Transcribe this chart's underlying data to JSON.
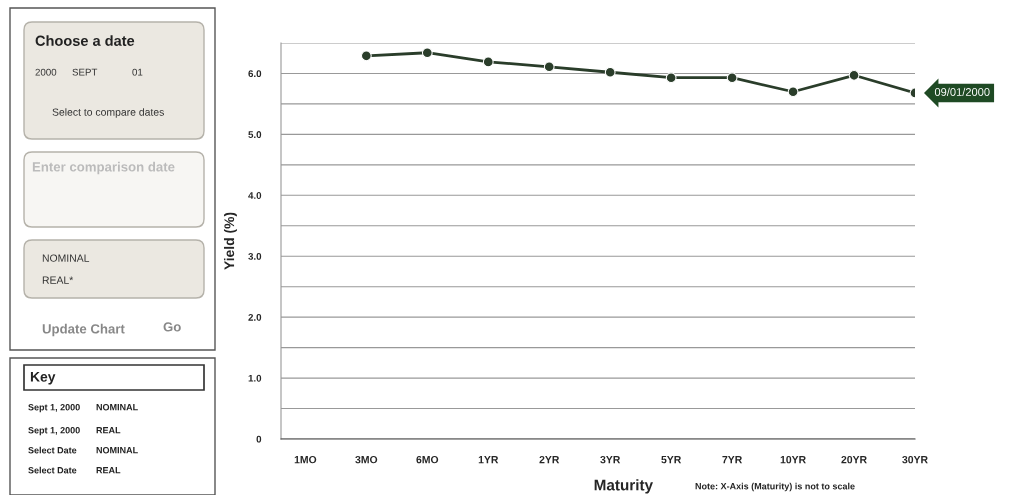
{
  "chart_data": [
    {
      "type": "other",
      "annotations": [
        "Choose a date",
        "2000",
        "SEPT",
        "01",
        "Select to compare dates",
        "Enter comparison date",
        "NOMINAL",
        "REAL*",
        "Update Chart",
        "Go",
        "Key",
        "Sept 1, 2000",
        "NOMINAL",
        "Sept 1, 2000",
        "REAL",
        "Select Date",
        "NOMINAL",
        "Select Date",
        "REAL"
      ]
    },
    {
      "type": "line",
      "categories": [
        "1MO",
        "3MO",
        "6MO",
        "1YR",
        "2YR",
        "3YR",
        "5YR",
        "7YR",
        "10YR",
        "20YR",
        "30YR"
      ],
      "series": [
        {
          "color": "#2a3d2a",
          "values": [
            null,
            6.29,
            6.34,
            6.19,
            6.11,
            6.02,
            5.93,
            5.93,
            5.7,
            5.97,
            5.68
          ]
        }
      ],
      "xlabel": "Maturity",
      "ylabel": "Yield (%)",
      "ylim": [
        0,
        6.5
      ],
      "yticks": [
        0,
        {
          "value": 0.5,
          "label": null
        },
        {
          "value": 1,
          "label": "1.0"
        },
        {
          "value": 1.5,
          "label": null
        },
        {
          "value": 2,
          "label": "2.0"
        },
        {
          "value": 2.5,
          "label": null
        },
        {
          "value": 3,
          "label": "3.0"
        },
        {
          "value": 3.5,
          "label": null
        },
        {
          "value": 4,
          "label": "4.0"
        },
        {
          "value": 4.5,
          "label": null
        },
        {
          "value": 5,
          "label": "5.0"
        },
        {
          "value": 5.5,
          "label": null
        },
        {
          "value": 6,
          "label": "6.0"
        },
        {
          "value": 6.5,
          "label": null
        }
      ],
      "grid": "y",
      "marker": "circle",
      "line_style": "solid",
      "annotations": [
        {
          "text": "09/01/2000",
          "x": "30YR",
          "y": 5.68
        },
        "Note: X-Axis (Maturity) is not to scale"
      ]
    }
  ]
}
